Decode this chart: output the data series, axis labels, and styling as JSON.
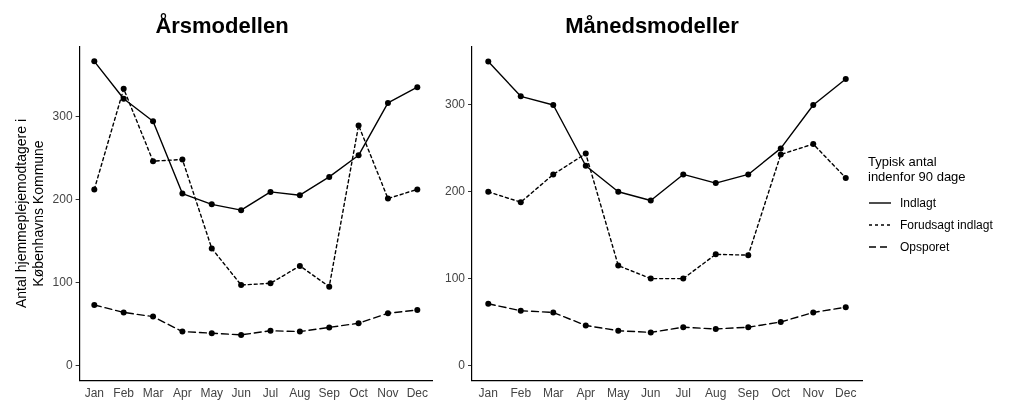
{
  "chart_data": [
    {
      "type": "line",
      "title": "Årsmodellen",
      "ylabel": "Antal hjemmeplejemodtagere i Københavns Kommune",
      "categories": [
        "Jan",
        "Feb",
        "Mar",
        "Apr",
        "May",
        "Jun",
        "Jul",
        "Aug",
        "Sep",
        "Oct",
        "Nov",
        "Dec"
      ],
      "ylim": [
        -18,
        384
      ],
      "yticks": [
        0,
        100,
        200,
        300
      ],
      "grid": false,
      "legend": false,
      "marker": "circle",
      "series": [
        {
          "color": "#000000",
          "line_style": "solid",
          "values": [
            366,
            321,
            294,
            207,
            194,
            187,
            209,
            205,
            227,
            253,
            316,
            335
          ]
        },
        {
          "color": "#000000",
          "line_style": "dotted",
          "values": [
            212,
            333,
            246,
            248,
            141,
            97,
            99,
            120,
            95,
            289,
            201,
            212
          ]
        },
        {
          "color": "#000000",
          "line_style": "dashed",
          "values": [
            73,
            64,
            59,
            41,
            39,
            37,
            42,
            41,
            46,
            51,
            63,
            67
          ]
        }
      ]
    },
    {
      "type": "line",
      "title": "Månedsmodeller",
      "legend_title": "Typisk antal indenfor 90 dage",
      "categories": [
        "Jan",
        "Feb",
        "Mar",
        "Apr",
        "May",
        "Jun",
        "Jul",
        "Aug",
        "Sep",
        "Oct",
        "Nov",
        "Dec"
      ],
      "ylim": [
        -17.5,
        367.5
      ],
      "yticks": [
        0,
        100,
        200,
        300
      ],
      "grid": false,
      "legend": "right",
      "marker": "circle",
      "series": [
        {
          "name": "Indlagt",
          "color": "#000000",
          "line_style": "solid",
          "values": [
            350,
            310,
            300,
            230,
            200,
            190,
            220,
            210,
            220,
            250,
            300,
            330
          ]
        },
        {
          "name": "Forudsagt indlagt",
          "color": "#000000",
          "line_style": "dotted",
          "values": [
            200,
            188,
            220,
            244,
            115,
            100,
            100,
            128,
            127,
            243,
            255,
            216
          ]
        },
        {
          "name": "Opsporet",
          "color": "#000000",
          "line_style": "dashed",
          "values": [
            71,
            63,
            61,
            46,
            40,
            38,
            44,
            42,
            44,
            50,
            61,
            67
          ]
        }
      ]
    }
  ]
}
